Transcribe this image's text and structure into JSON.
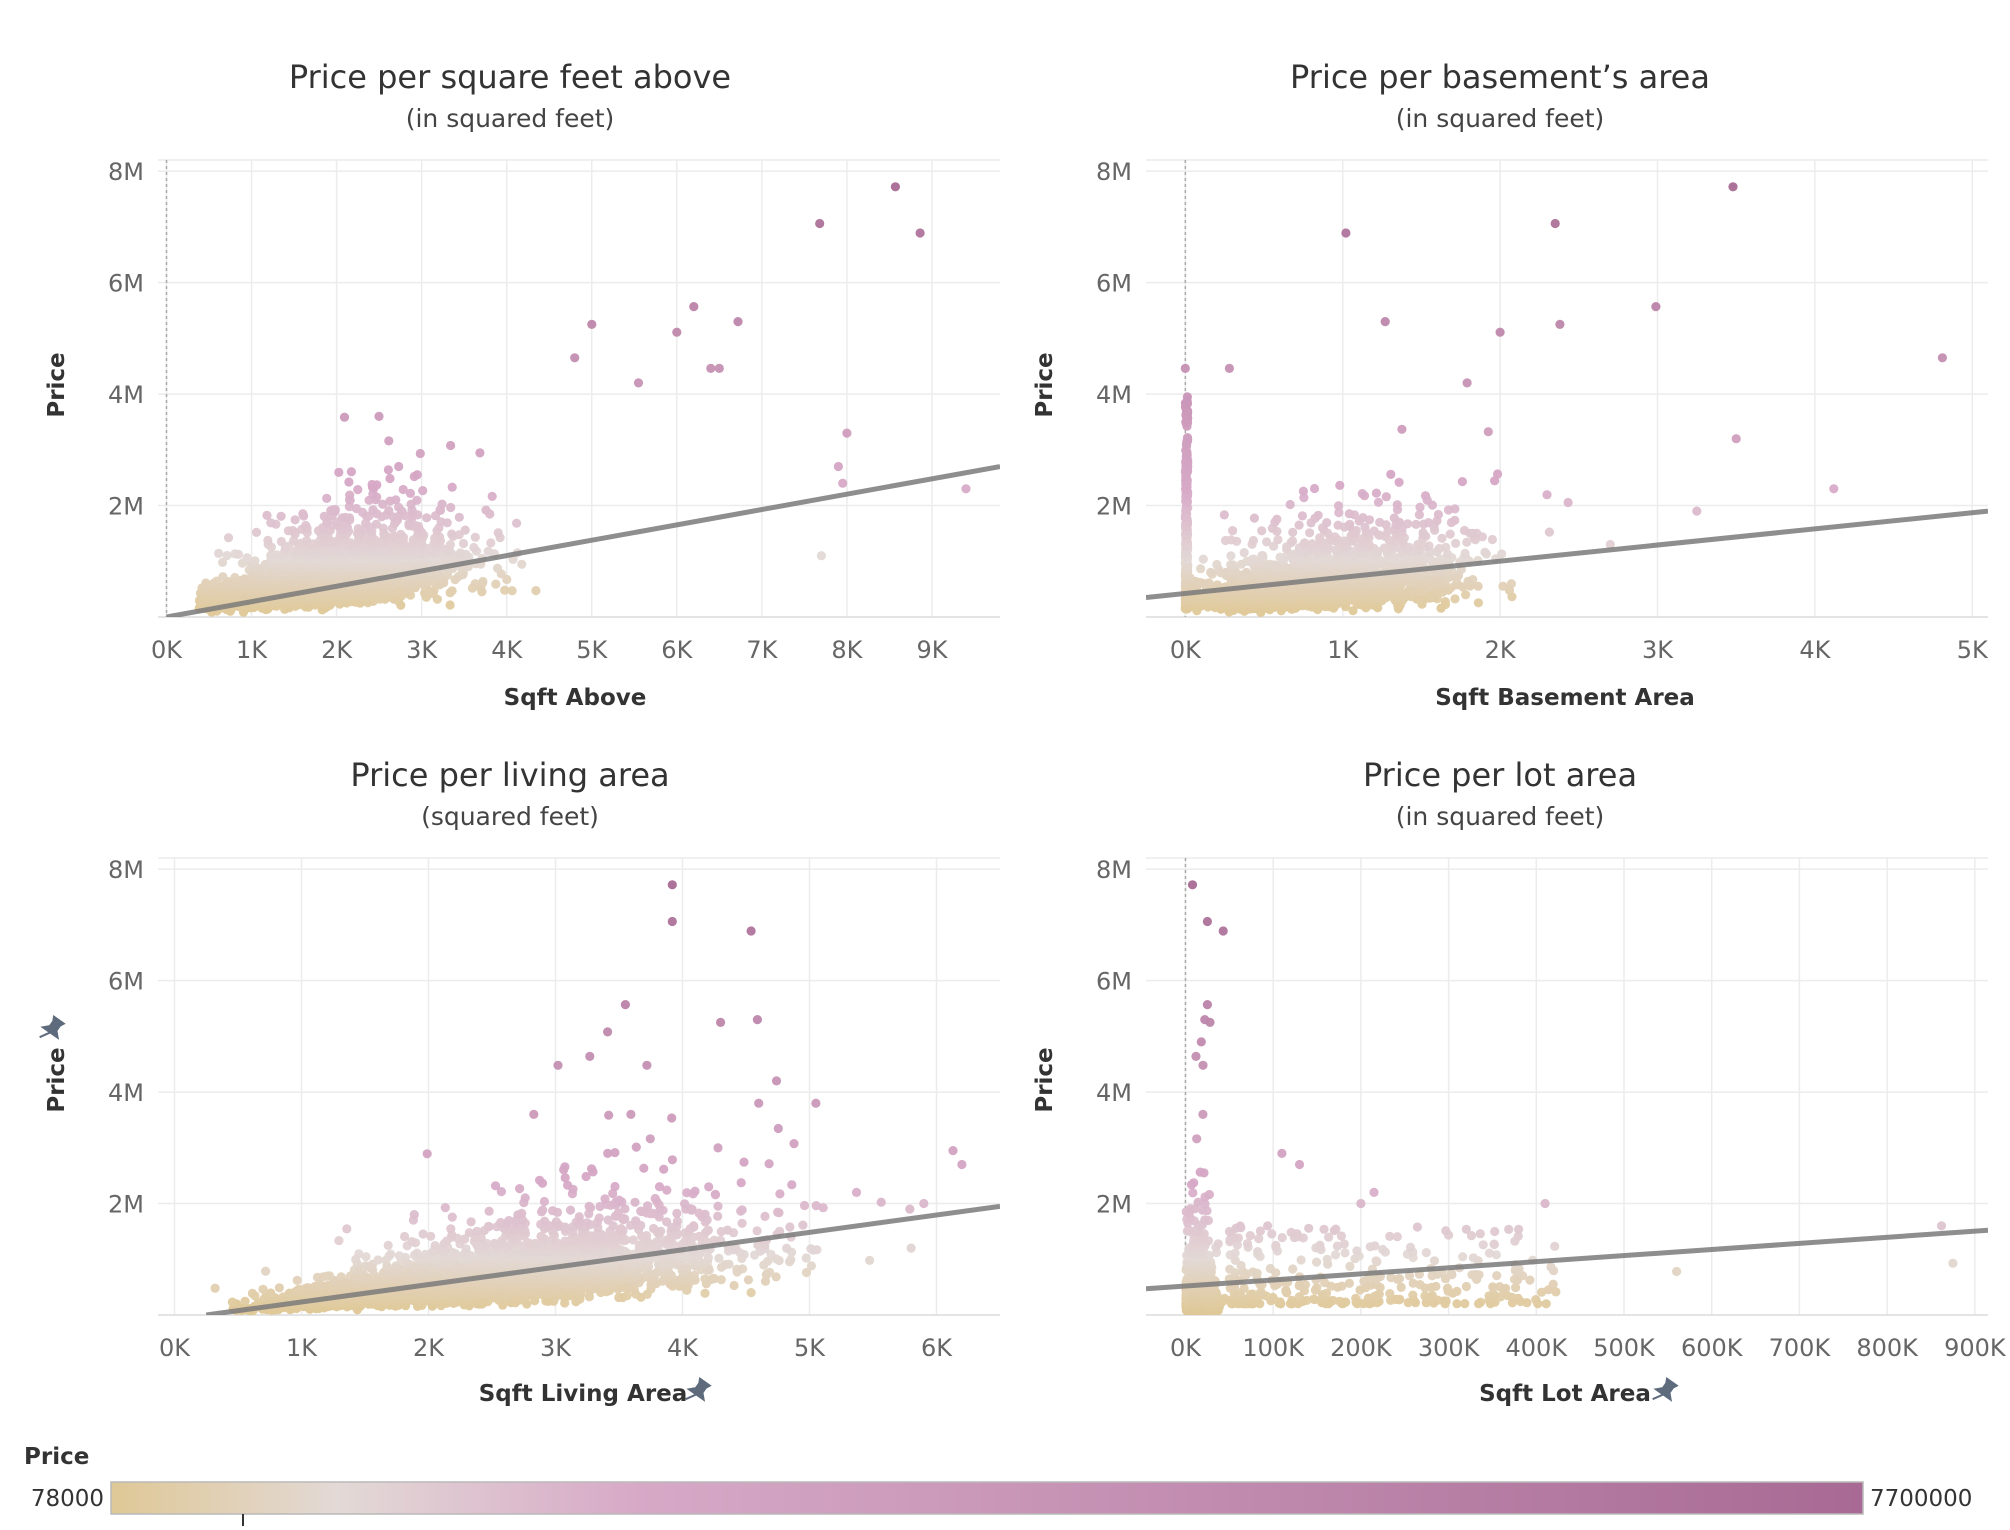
{
  "colors": {
    "low": "#dfc896",
    "mid": "#e3d9d6",
    "high": "#a86a94",
    "pink": "#d7a9c7",
    "trend": "#7a7a7a",
    "grid": "#ececec",
    "pin": "#5d6b7d"
  },
  "legend": {
    "title": "Price",
    "min_label": "78000",
    "max_label": "7700000",
    "min": 78000,
    "max": 7700000
  },
  "icons": {
    "pin": "pin-icon"
  },
  "chart_data": [
    {
      "type": "scatter",
      "title": "Price per square feet above",
      "subtitle": "(in squared feet)",
      "xlabel": "Sqft Above",
      "ylabel": "Price",
      "xlim": [
        -100,
        9800
      ],
      "ylim": [
        0,
        8200000
      ],
      "xticks": [
        0,
        1000,
        2000,
        3000,
        4000,
        5000,
        6000,
        7000,
        8000,
        9000
      ],
      "xtick_labels": [
        "0K",
        "1K",
        "2K",
        "3K",
        "4K",
        "5K",
        "6K",
        "7K",
        "8K",
        "9K"
      ],
      "yticks": [
        2000000,
        4000000,
        6000000,
        8000000
      ],
      "ytick_labels": [
        "2M",
        "4M",
        "6M",
        "8M"
      ],
      "zero_line": true,
      "trend": [
        [
          0,
          0
        ],
        [
          9800,
          2700000
        ]
      ],
      "outliers": [
        [
          8570,
          7720000
        ],
        [
          7680,
          7060000
        ],
        [
          8860,
          6890000
        ],
        [
          6720,
          5300000
        ],
        [
          5000,
          5250000
        ],
        [
          6200,
          5570000
        ],
        [
          6000,
          5110000
        ],
        [
          4800,
          4650000
        ],
        [
          6400,
          4460000
        ],
        [
          6500,
          4460000
        ],
        [
          5550,
          4200000
        ],
        [
          7700,
          1100000
        ],
        [
          8000,
          3300000
        ],
        [
          7900,
          2700000
        ],
        [
          7950,
          2400000
        ],
        [
          9400,
          2300000
        ]
      ],
      "cloud": {
        "x_mean": 1800,
        "x_sd": 800,
        "x_min": 380,
        "x_max": 6800,
        "base": 150000,
        "slope": 270,
        "spread": 0.45,
        "n": 2600
      }
    },
    {
      "type": "scatter",
      "title": "Price per basement’s area",
      "subtitle": "(in squared feet)",
      "xlabel": "Sqft Basement Area",
      "ylabel": "Price",
      "xlim": [
        -250,
        5100
      ],
      "ylim": [
        0,
        8200000
      ],
      "xticks": [
        0,
        1000,
        2000,
        3000,
        4000,
        5000
      ],
      "xtick_labels": [
        "0K",
        "1K",
        "2K",
        "3K",
        "4K",
        "5K"
      ],
      "yticks": [
        2000000,
        4000000,
        6000000,
        8000000
      ],
      "ytick_labels": [
        "2M",
        "4M",
        "6M",
        "8M"
      ],
      "zero_line": true,
      "trend": [
        [
          -250,
          350000
        ],
        [
          5100,
          1900000
        ]
      ],
      "outliers": [
        [
          3480,
          7720000
        ],
        [
          2350,
          7060000
        ],
        [
          1020,
          6890000
        ],
        [
          1270,
          5300000
        ],
        [
          2380,
          5250000
        ],
        [
          2990,
          5570000
        ],
        [
          2000,
          5110000
        ],
        [
          4810,
          4650000
        ],
        [
          280,
          4460000
        ],
        [
          0,
          4460000
        ],
        [
          1790,
          4200000
        ],
        [
          3500,
          3200000
        ],
        [
          4120,
          2300000
        ],
        [
          3250,
          1900000
        ],
        [
          2700,
          1300000
        ]
      ],
      "cloud": {
        "x_mean": 850,
        "x_sd": 450,
        "x_min": 20,
        "x_max": 2900,
        "base": 300000,
        "slope": 330,
        "spread": 0.5,
        "n": 1900,
        "zero_col": 420
      }
    },
    {
      "type": "scatter",
      "title": "Price per living area",
      "subtitle": "(squared feet)",
      "xlabel": "Sqft Living Area",
      "ylabel": "Price",
      "xlim": [
        -130,
        6500
      ],
      "ylim": [
        0,
        8200000
      ],
      "xticks": [
        0,
        1000,
        2000,
        3000,
        4000,
        5000,
        6000
      ],
      "xtick_labels": [
        "0K",
        "1K",
        "2K",
        "3K",
        "4K",
        "5K",
        "6K"
      ],
      "yticks": [
        2000000,
        4000000,
        6000000,
        8000000
      ],
      "ytick_labels": [
        "2M",
        "4M",
        "6M",
        "8M"
      ],
      "zero_line": false,
      "trend": [
        [
          250,
          0
        ],
        [
          6500,
          1950000
        ]
      ],
      "outliers": [
        [
          3920,
          7720000
        ],
        [
          3920,
          7060000
        ],
        [
          4540,
          6890000
        ],
        [
          3550,
          5570000
        ],
        [
          4590,
          5300000
        ],
        [
          4300,
          5250000
        ],
        [
          3410,
          5080000
        ],
        [
          3270,
          4640000
        ],
        [
          3020,
          4480000
        ],
        [
          3720,
          4480000
        ],
        [
          4740,
          4200000
        ],
        [
          4600,
          3800000
        ],
        [
          5050,
          3800000
        ],
        [
          6130,
          2950000
        ],
        [
          6200,
          2700000
        ],
        [
          5790,
          1900000
        ],
        [
          5800,
          1200000
        ],
        [
          5370,
          2200000
        ],
        [
          5900,
          2000000
        ],
        [
          320,
          480000
        ]
      ],
      "cloud": {
        "x_mean": 2500,
        "x_sd": 900,
        "x_min": 450,
        "x_max": 5600,
        "base": -50000,
        "slope": 290,
        "spread": 0.45,
        "n": 2800
      }
    },
    {
      "type": "scatter",
      "title": "Price per lot area",
      "subtitle": "(in squared feet)",
      "xlabel": "Sqft Lot Area",
      "ylabel": "Price",
      "xlim": [
        -45000,
        915000
      ],
      "ylim": [
        0,
        8200000
      ],
      "xticks": [
        0,
        100000,
        200000,
        300000,
        400000,
        500000,
        600000,
        700000,
        800000,
        900000
      ],
      "xtick_labels": [
        "0K",
        "100K",
        "200K",
        "300K",
        "400K",
        "500K",
        "600K",
        "700K",
        "800K",
        "900K"
      ],
      "yticks": [
        2000000,
        4000000,
        6000000,
        8000000
      ],
      "ytick_labels": [
        "2M",
        "4M",
        "6M",
        "8M"
      ],
      "zero_line": true,
      "trend": [
        [
          -45000,
          470000
        ],
        [
          915000,
          1520000
        ]
      ],
      "outliers": [
        [
          8000,
          7720000
        ],
        [
          25000,
          7060000
        ],
        [
          43000,
          6890000
        ],
        [
          25000,
          5570000
        ],
        [
          22000,
          5300000
        ],
        [
          28000,
          5250000
        ],
        [
          18000,
          4900000
        ],
        [
          12000,
          4640000
        ],
        [
          20000,
          4480000
        ],
        [
          410000,
          2000000
        ],
        [
          862000,
          1600000
        ],
        [
          875000,
          930000
        ],
        [
          560000,
          780000
        ],
        [
          215000,
          2200000
        ],
        [
          200000,
          2000000
        ],
        [
          130000,
          2700000
        ],
        [
          110000,
          2900000
        ]
      ],
      "cloud": {
        "x_mean": 12000,
        "x_sd": 9000,
        "x_min": 500,
        "x_max": 70000,
        "base": 250000,
        "slope": 0,
        "spread": 0.8,
        "n": 2200,
        "tail": 320
      }
    }
  ]
}
